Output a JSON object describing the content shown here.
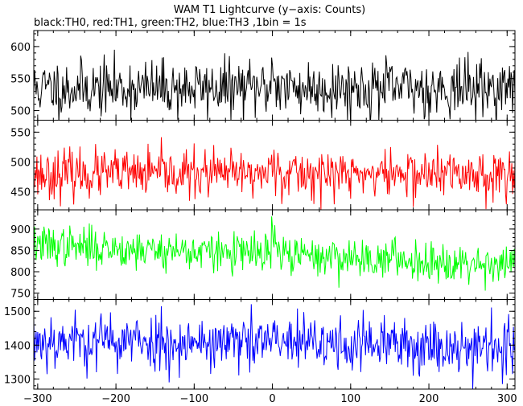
{
  "chart_data": {
    "type": "line",
    "title": "WAM T1 Lightcurve (y−axis: Counts)",
    "subtitle": "black:TH0, red:TH1, green:TH2, blue:TH3 ,1bin = 1s",
    "x_range": [
      -305,
      310
    ],
    "x_ticks": [
      -300,
      -200,
      -100,
      0,
      100,
      200,
      300
    ],
    "x_tick_labels": [
      "−300",
      "−200",
      "−100",
      "0",
      "100",
      "200",
      "300"
    ],
    "panels": [
      {
        "name": "TH0",
        "color": "#000000",
        "ylim": [
          485,
          625
        ],
        "yticks": [
          500,
          550,
          600
        ],
        "series": {
          "x_start": -305,
          "x_step": 1,
          "mean": 535,
          "spread": 22,
          "trend": 0,
          "burst_at": 0,
          "burst_height": 35,
          "seed": 11
        }
      },
      {
        "name": "TH1",
        "color": "#ff0000",
        "ylim": [
          420,
          570
        ],
        "yticks": [
          450,
          500,
          550
        ],
        "series": {
          "x_start": -305,
          "x_step": 1,
          "mean": 480,
          "spread": 20,
          "trend": 0,
          "burst_at": 0,
          "burst_height": 45,
          "seed": 23
        }
      },
      {
        "name": "TH2",
        "color": "#00ff00",
        "ylim": [
          735,
          945
        ],
        "yticks": [
          750,
          800,
          850,
          900
        ],
        "series": {
          "x_start": -305,
          "x_step": 1,
          "mean": 840,
          "spread": 23,
          "trend": -45,
          "burst_at": 0,
          "burst_height": 55,
          "seed": 37
        }
      },
      {
        "name": "TH3",
        "color": "#0000ff",
        "ylim": [
          1270,
          1535
        ],
        "yticks": [
          1300,
          1400,
          1500
        ],
        "series": {
          "x_start": -305,
          "x_step": 1,
          "mean": 1405,
          "spread": 42,
          "trend": -20,
          "burst_at": 0,
          "burst_height": 30,
          "seed": 53
        }
      }
    ]
  }
}
